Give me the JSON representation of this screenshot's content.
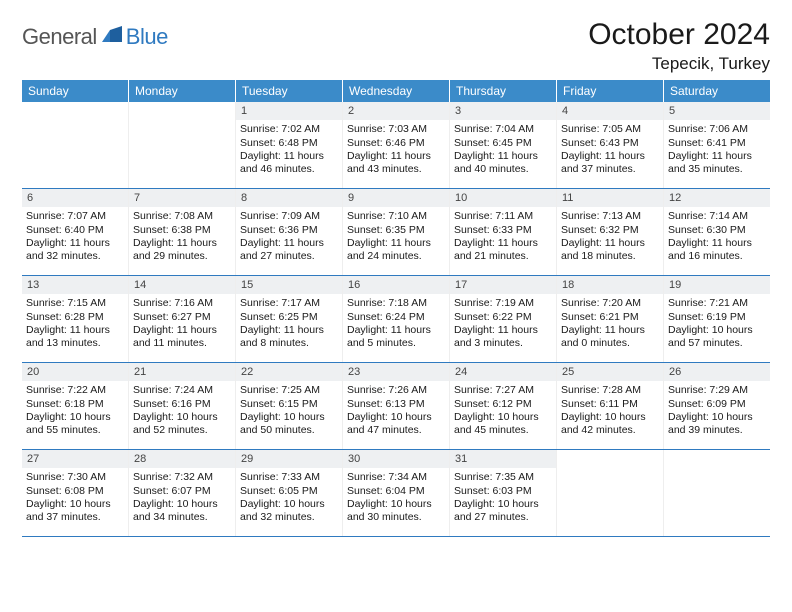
{
  "logo": {
    "text1": "General",
    "text2": "Blue"
  },
  "title": "October 2024",
  "location": "Tepecik, Turkey",
  "colors": {
    "header_bg": "#3b8bc9",
    "header_text": "#ffffff",
    "rule": "#2f7ac0",
    "daynum_bg": "#eef0f2",
    "text": "#1a1a1a"
  },
  "daynames": [
    "Sunday",
    "Monday",
    "Tuesday",
    "Wednesday",
    "Thursday",
    "Friday",
    "Saturday"
  ],
  "weeks": [
    [
      null,
      null,
      {
        "n": "1",
        "sr": "Sunrise: 7:02 AM",
        "ss": "Sunset: 6:48 PM",
        "d1": "Daylight: 11 hours",
        "d2": "and 46 minutes."
      },
      {
        "n": "2",
        "sr": "Sunrise: 7:03 AM",
        "ss": "Sunset: 6:46 PM",
        "d1": "Daylight: 11 hours",
        "d2": "and 43 minutes."
      },
      {
        "n": "3",
        "sr": "Sunrise: 7:04 AM",
        "ss": "Sunset: 6:45 PM",
        "d1": "Daylight: 11 hours",
        "d2": "and 40 minutes."
      },
      {
        "n": "4",
        "sr": "Sunrise: 7:05 AM",
        "ss": "Sunset: 6:43 PM",
        "d1": "Daylight: 11 hours",
        "d2": "and 37 minutes."
      },
      {
        "n": "5",
        "sr": "Sunrise: 7:06 AM",
        "ss": "Sunset: 6:41 PM",
        "d1": "Daylight: 11 hours",
        "d2": "and 35 minutes."
      }
    ],
    [
      {
        "n": "6",
        "sr": "Sunrise: 7:07 AM",
        "ss": "Sunset: 6:40 PM",
        "d1": "Daylight: 11 hours",
        "d2": "and 32 minutes."
      },
      {
        "n": "7",
        "sr": "Sunrise: 7:08 AM",
        "ss": "Sunset: 6:38 PM",
        "d1": "Daylight: 11 hours",
        "d2": "and 29 minutes."
      },
      {
        "n": "8",
        "sr": "Sunrise: 7:09 AM",
        "ss": "Sunset: 6:36 PM",
        "d1": "Daylight: 11 hours",
        "d2": "and 27 minutes."
      },
      {
        "n": "9",
        "sr": "Sunrise: 7:10 AM",
        "ss": "Sunset: 6:35 PM",
        "d1": "Daylight: 11 hours",
        "d2": "and 24 minutes."
      },
      {
        "n": "10",
        "sr": "Sunrise: 7:11 AM",
        "ss": "Sunset: 6:33 PM",
        "d1": "Daylight: 11 hours",
        "d2": "and 21 minutes."
      },
      {
        "n": "11",
        "sr": "Sunrise: 7:13 AM",
        "ss": "Sunset: 6:32 PM",
        "d1": "Daylight: 11 hours",
        "d2": "and 18 minutes."
      },
      {
        "n": "12",
        "sr": "Sunrise: 7:14 AM",
        "ss": "Sunset: 6:30 PM",
        "d1": "Daylight: 11 hours",
        "d2": "and 16 minutes."
      }
    ],
    [
      {
        "n": "13",
        "sr": "Sunrise: 7:15 AM",
        "ss": "Sunset: 6:28 PM",
        "d1": "Daylight: 11 hours",
        "d2": "and 13 minutes."
      },
      {
        "n": "14",
        "sr": "Sunrise: 7:16 AM",
        "ss": "Sunset: 6:27 PM",
        "d1": "Daylight: 11 hours",
        "d2": "and 11 minutes."
      },
      {
        "n": "15",
        "sr": "Sunrise: 7:17 AM",
        "ss": "Sunset: 6:25 PM",
        "d1": "Daylight: 11 hours",
        "d2": "and 8 minutes."
      },
      {
        "n": "16",
        "sr": "Sunrise: 7:18 AM",
        "ss": "Sunset: 6:24 PM",
        "d1": "Daylight: 11 hours",
        "d2": "and 5 minutes."
      },
      {
        "n": "17",
        "sr": "Sunrise: 7:19 AM",
        "ss": "Sunset: 6:22 PM",
        "d1": "Daylight: 11 hours",
        "d2": "and 3 minutes."
      },
      {
        "n": "18",
        "sr": "Sunrise: 7:20 AM",
        "ss": "Sunset: 6:21 PM",
        "d1": "Daylight: 11 hours",
        "d2": "and 0 minutes."
      },
      {
        "n": "19",
        "sr": "Sunrise: 7:21 AM",
        "ss": "Sunset: 6:19 PM",
        "d1": "Daylight: 10 hours",
        "d2": "and 57 minutes."
      }
    ],
    [
      {
        "n": "20",
        "sr": "Sunrise: 7:22 AM",
        "ss": "Sunset: 6:18 PM",
        "d1": "Daylight: 10 hours",
        "d2": "and 55 minutes."
      },
      {
        "n": "21",
        "sr": "Sunrise: 7:24 AM",
        "ss": "Sunset: 6:16 PM",
        "d1": "Daylight: 10 hours",
        "d2": "and 52 minutes."
      },
      {
        "n": "22",
        "sr": "Sunrise: 7:25 AM",
        "ss": "Sunset: 6:15 PM",
        "d1": "Daylight: 10 hours",
        "d2": "and 50 minutes."
      },
      {
        "n": "23",
        "sr": "Sunrise: 7:26 AM",
        "ss": "Sunset: 6:13 PM",
        "d1": "Daylight: 10 hours",
        "d2": "and 47 minutes."
      },
      {
        "n": "24",
        "sr": "Sunrise: 7:27 AM",
        "ss": "Sunset: 6:12 PM",
        "d1": "Daylight: 10 hours",
        "d2": "and 45 minutes."
      },
      {
        "n": "25",
        "sr": "Sunrise: 7:28 AM",
        "ss": "Sunset: 6:11 PM",
        "d1": "Daylight: 10 hours",
        "d2": "and 42 minutes."
      },
      {
        "n": "26",
        "sr": "Sunrise: 7:29 AM",
        "ss": "Sunset: 6:09 PM",
        "d1": "Daylight: 10 hours",
        "d2": "and 39 minutes."
      }
    ],
    [
      {
        "n": "27",
        "sr": "Sunrise: 7:30 AM",
        "ss": "Sunset: 6:08 PM",
        "d1": "Daylight: 10 hours",
        "d2": "and 37 minutes."
      },
      {
        "n": "28",
        "sr": "Sunrise: 7:32 AM",
        "ss": "Sunset: 6:07 PM",
        "d1": "Daylight: 10 hours",
        "d2": "and 34 minutes."
      },
      {
        "n": "29",
        "sr": "Sunrise: 7:33 AM",
        "ss": "Sunset: 6:05 PM",
        "d1": "Daylight: 10 hours",
        "d2": "and 32 minutes."
      },
      {
        "n": "30",
        "sr": "Sunrise: 7:34 AM",
        "ss": "Sunset: 6:04 PM",
        "d1": "Daylight: 10 hours",
        "d2": "and 30 minutes."
      },
      {
        "n": "31",
        "sr": "Sunrise: 7:35 AM",
        "ss": "Sunset: 6:03 PM",
        "d1": "Daylight: 10 hours",
        "d2": "and 27 minutes."
      },
      null,
      null
    ]
  ]
}
